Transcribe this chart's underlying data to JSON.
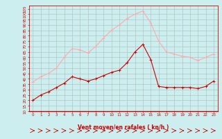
{
  "x": [
    0,
    1,
    2,
    3,
    4,
    5,
    6,
    7,
    8,
    9,
    10,
    11,
    12,
    13,
    14,
    15,
    16,
    17,
    18,
    19,
    20,
    21,
    22,
    23
  ],
  "wind_avg": [
    20,
    25,
    28,
    32,
    36,
    42,
    40,
    38,
    40,
    43,
    46,
    48,
    55,
    65,
    72,
    58,
    33,
    32,
    32,
    32,
    32,
    31,
    33,
    38
  ],
  "wind_gust": [
    37,
    42,
    45,
    50,
    60,
    68,
    67,
    64,
    70,
    78,
    85,
    90,
    96,
    100,
    103,
    92,
    75,
    65,
    63,
    61,
    60,
    57,
    60,
    63
  ],
  "wind_avg_color": "#cc0000",
  "wind_gust_color": "#ffaaaa",
  "bg_color": "#cceeee",
  "grid_color": "#aabbbb",
  "xlabel": "Vent moyen/en rafales ( kn/h )",
  "xlabel_color": "#cc0000",
  "tick_color": "#cc0000",
  "ymin": 10,
  "ymax": 108,
  "ytick_min": 10,
  "ytick_max": 105,
  "ytick_step": 5,
  "arrow_color": "#cc0000"
}
